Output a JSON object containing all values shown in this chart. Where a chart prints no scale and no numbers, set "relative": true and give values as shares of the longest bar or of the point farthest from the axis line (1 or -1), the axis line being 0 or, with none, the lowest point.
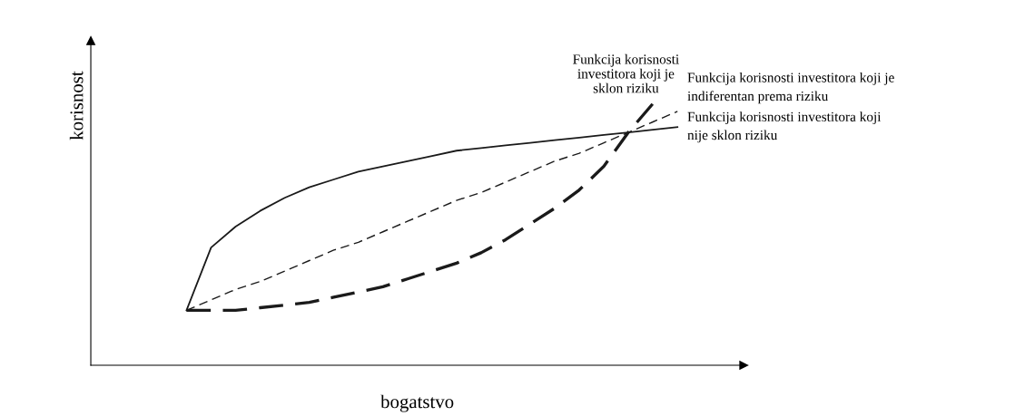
{
  "chart_data": {
    "type": "line",
    "relative": true,
    "xlabel": "bogatstvo",
    "ylabel": "korisnost",
    "categories": [
      null,
      null,
      null,
      null,
      null,
      null,
      null,
      null,
      null,
      null,
      null,
      null,
      null,
      null,
      null,
      null,
      null,
      null,
      null,
      null,
      null
    ],
    "series": [
      {
        "color": "#1a1a1a",
        "line_style": "dashed",
        "values": [
          0.21,
          0.21,
          0.21,
          0.22,
          0.23,
          0.24,
          0.26,
          0.28,
          0.3,
          0.33,
          0.36,
          0.39,
          0.43,
          0.48,
          0.54,
          0.6,
          0.67,
          0.76,
          0.89,
          1.0,
          null
        ]
      },
      {
        "color": "#1a1a1a",
        "line_style": "dashed",
        "values": [
          0.21,
          0.25,
          0.29,
          0.32,
          0.36,
          0.4,
          0.44,
          0.47,
          0.51,
          0.55,
          0.59,
          0.63,
          0.66,
          0.7,
          0.74,
          0.78,
          0.81,
          0.85,
          0.89,
          0.93,
          0.97
        ]
      },
      {
        "color": "#1a1a1a",
        "line_style": "solid",
        "values": [
          0.21,
          0.45,
          0.53,
          0.59,
          0.64,
          0.68,
          0.71,
          0.74,
          0.76,
          0.78,
          0.8,
          0.82,
          0.83,
          0.84,
          0.85,
          0.86,
          0.87,
          0.88,
          0.89,
          0.9,
          0.91
        ]
      }
    ],
    "annotations": [
      "Funkcija korisnosti\ninvestitora koji je\nsklon riziku",
      "Funkcija korisnosti investitora koji je\nindiferentan prema riziku",
      "Funkcija korisnosti investitora koji\nnije sklon riziku"
    ],
    "legend": false,
    "grid": false,
    "marker": "none"
  }
}
